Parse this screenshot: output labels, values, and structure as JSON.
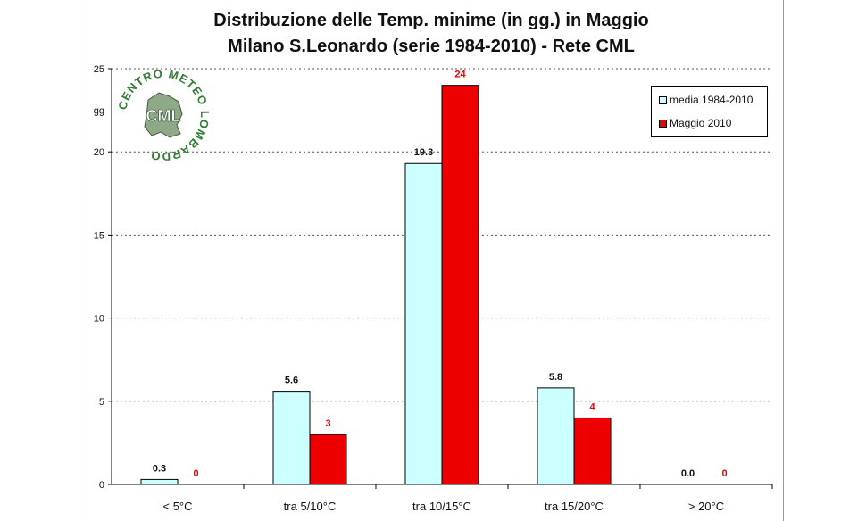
{
  "title_line1": "Distribuzione delle Temp. minime (in gg.) in Maggio",
  "title_line2": "Milano S.Leonardo (serie 1984-2010) - Rete CML",
  "logo": {
    "text_ring": "CENTRO METEO LOMBARDO",
    "text_center": "CML"
  },
  "colors": {
    "media": "#ccffff",
    "maggio": "#ee0000",
    "maggio_label": "#ee0000",
    "gridline": "#555555"
  },
  "chart_data": {
    "type": "bar",
    "categories": [
      "< 5°C",
      "tra 5/10°C",
      "tra 10/15°C",
      "tra 15/20°C",
      "> 20°C"
    ],
    "series": [
      {
        "name": "media 1984-2010",
        "values": [
          0.3,
          5.6,
          19.3,
          5.8,
          0.0
        ],
        "labels": [
          "0.3",
          "5.6",
          "19.3",
          "5.8",
          "0.0"
        ]
      },
      {
        "name": "Maggio 2010",
        "values": [
          0,
          3,
          24,
          4,
          0
        ],
        "labels": [
          "0",
          "3",
          "24",
          "4",
          "0"
        ]
      }
    ],
    "ylabel": "gg",
    "ylim": [
      0,
      25
    ],
    "yticks": [
      "0",
      "5",
      "10",
      "15",
      "20",
      "25"
    ],
    "grid": true,
    "legend_position": "top-right"
  }
}
